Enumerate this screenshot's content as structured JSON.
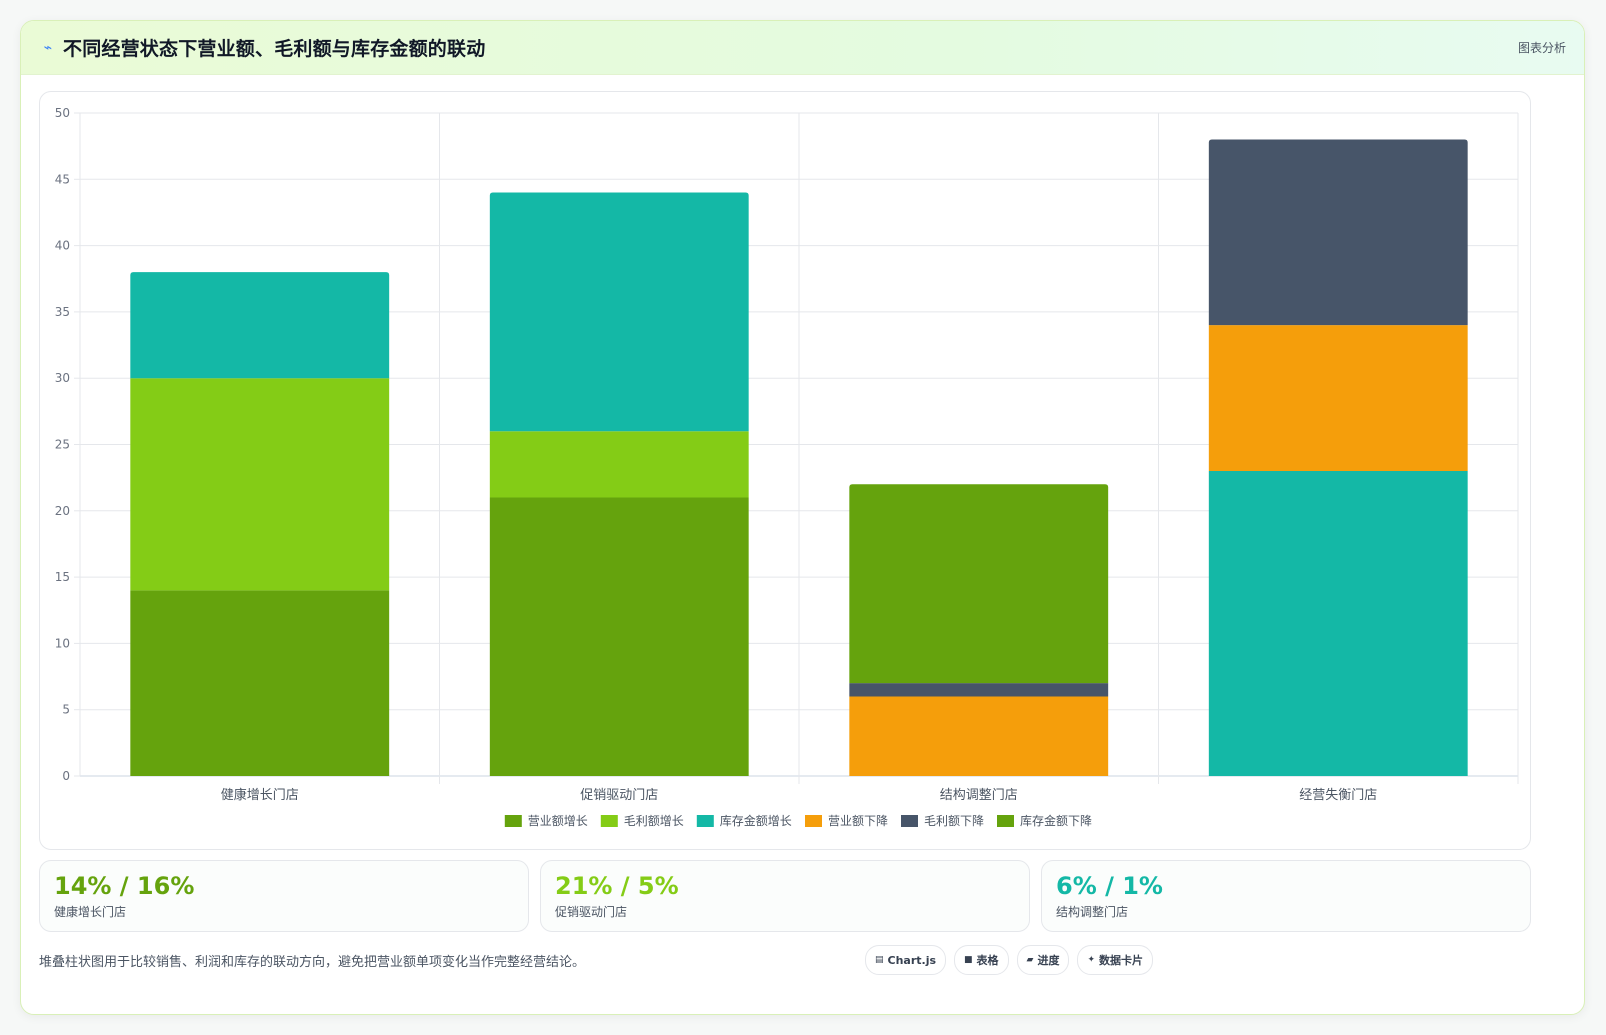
{
  "header": {
    "title": "不同经营状态下营业额、毛利额与库存金额的联动",
    "title_icon": "⌁",
    "tag": "图表分析"
  },
  "chart_data": {
    "type": "bar",
    "stacked": true,
    "categories": [
      "健康增长门店",
      "促销驱动门店",
      "结构调整门店",
      "经营失衡门店"
    ],
    "series": [
      {
        "name": "营业额增长",
        "color": "#65a30d",
        "values": [
          14,
          21,
          0,
          0
        ]
      },
      {
        "name": "毛利额增长",
        "color": "#84cc16",
        "values": [
          16,
          5,
          0,
          0
        ]
      },
      {
        "name": "库存金额增长",
        "color": "#14b8a6",
        "values": [
          8,
          18,
          0,
          23
        ]
      },
      {
        "name": "营业额下降",
        "color": "#f59e0b",
        "values": [
          0,
          0,
          6,
          11
        ]
      },
      {
        "name": "毛利额下降",
        "color": "#475569",
        "values": [
          0,
          0,
          1,
          14
        ]
      },
      {
        "name": "库存金额下降",
        "color": "#65a30d",
        "values": [
          0,
          0,
          15,
          0
        ]
      }
    ],
    "ylim": [
      0,
      50
    ],
    "yticks": [
      0,
      5,
      10,
      15,
      20,
      25,
      30,
      35,
      40,
      45,
      50
    ],
    "grid": true,
    "legend": "bottom-center",
    "title": "",
    "xlabel": "",
    "ylabel": ""
  },
  "stats": [
    {
      "value": "14% / 16%",
      "label": "健康增长门店",
      "color": "#65a30d"
    },
    {
      "value": "21% / 5%",
      "label": "促销驱动门店",
      "color": "#84cc16"
    },
    {
      "value": "6% / 1%",
      "label": "结构调整门店",
      "color": "#14b8a6"
    }
  ],
  "footer": {
    "note": "堆叠柱状图用于比较销售、利润和库存的联动方向，避免把营业额单项变化当作完整经营结论。",
    "chips": [
      {
        "icon": "▤",
        "label": "Chart.js"
      },
      {
        "icon": "■",
        "label": "表格"
      },
      {
        "icon": "▰",
        "label": "进度"
      },
      {
        "icon": "✦",
        "label": "数据卡片"
      }
    ]
  }
}
